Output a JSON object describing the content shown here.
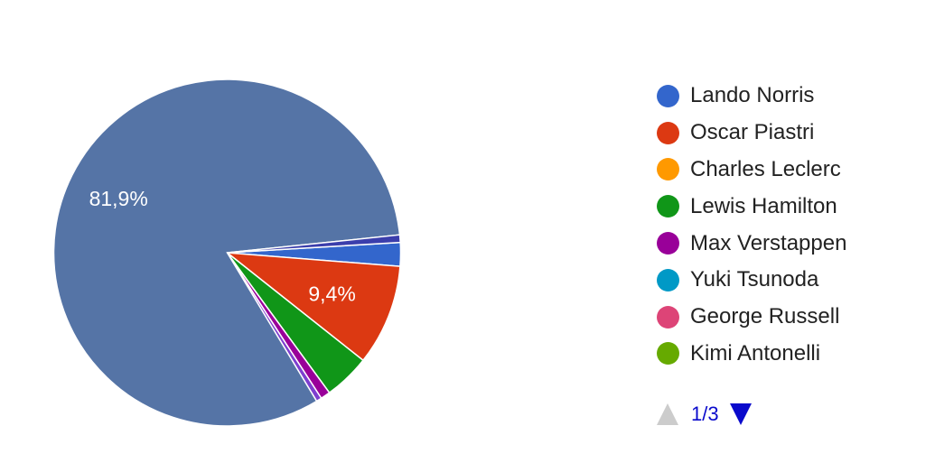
{
  "chart_data": {
    "type": "pie",
    "slices": [
      {
        "name": "Lando Norris",
        "value": 2.2,
        "color": "#3366cc"
      },
      {
        "name": "Oscar Piastri",
        "value": 9.4,
        "color": "#dc3912",
        "label": "9,4%"
      },
      {
        "name": "Charles Leclerc",
        "value": 0.0,
        "color": "#ff9900"
      },
      {
        "name": "Lewis Hamilton",
        "value": 4.3,
        "color": "#109618"
      },
      {
        "name": "Max Verstappen",
        "value": 0.9,
        "color": "#990099"
      },
      {
        "name": "Yuki Tsunoda",
        "value": 0.0,
        "color": "#0099c6"
      },
      {
        "name": "George Russell",
        "value": 0.0,
        "color": "#dd4477"
      },
      {
        "name": "Kimi Antonelli",
        "value": 0.0,
        "color": "#66aa00"
      },
      {
        "name": "",
        "value": 0.5,
        "color": "#7e3fcf"
      },
      {
        "name": "",
        "value": 81.9,
        "color": "#5574a6",
        "label": "81,9%"
      },
      {
        "name": "",
        "value": 0.7,
        "color": "#3b3eac"
      }
    ],
    "start_angle_deg": 86.6,
    "legend_position": "right",
    "legend": {
      "entries": [
        {
          "label": "Lando Norris",
          "color": "#3366cc"
        },
        {
          "label": "Oscar Piastri",
          "color": "#dc3912"
        },
        {
          "label": "Charles Leclerc",
          "color": "#ff9900"
        },
        {
          "label": "Lewis Hamilton",
          "color": "#109618"
        },
        {
          "label": "Max Verstappen",
          "color": "#990099"
        },
        {
          "label": "Yuki Tsunoda",
          "color": "#0099c6"
        },
        {
          "label": "George Russell",
          "color": "#dd4477"
        },
        {
          "label": "Kimi Antonelli",
          "color": "#66aa00"
        }
      ],
      "pager": {
        "text": "1/3",
        "prev_icon": "triangle-up-icon",
        "next_icon": "triangle-down-icon",
        "prev_color": "#cccccc",
        "next_color": "#0a0acc"
      }
    }
  }
}
